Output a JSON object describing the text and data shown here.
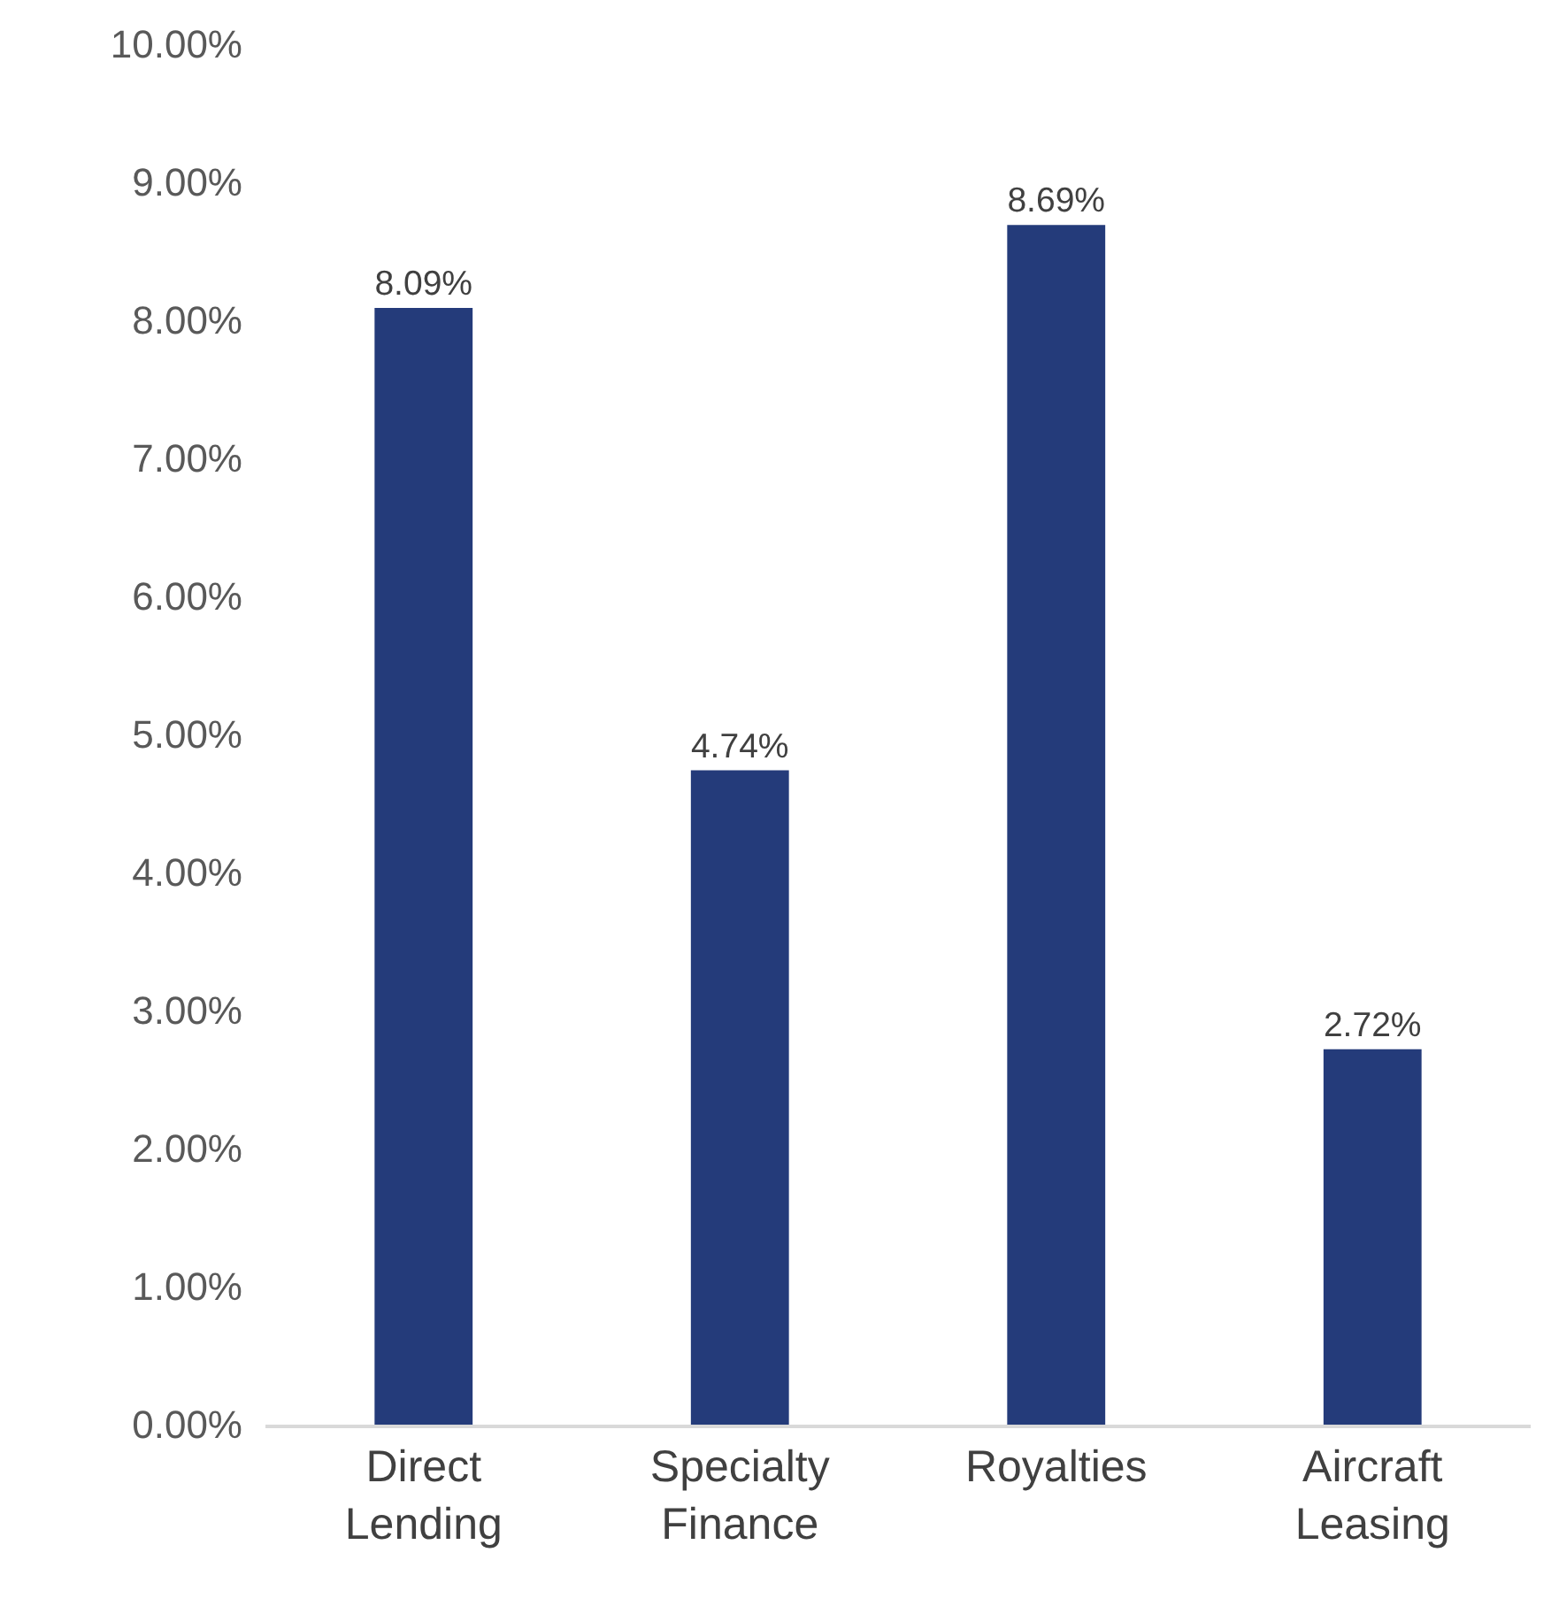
{
  "chart_data": {
    "type": "bar",
    "categories": [
      "Direct Lending",
      "Specialty Finance",
      "Royalties",
      "Aircraft Leasing"
    ],
    "values": [
      8.09,
      4.74,
      8.69,
      2.72
    ],
    "value_labels": [
      "8.09%",
      "4.74%",
      "8.69%",
      "2.72%"
    ],
    "color": "#243b7a",
    "ylim": [
      0,
      10
    ],
    "yticks": [
      {
        "value": 0,
        "label": "0.00%"
      },
      {
        "value": 1,
        "label": "1.00%"
      },
      {
        "value": 2,
        "label": "2.00%"
      },
      {
        "value": 3,
        "label": "3.00%"
      },
      {
        "value": 4,
        "label": "4.00%"
      },
      {
        "value": 5,
        "label": "5.00%"
      },
      {
        "value": 6,
        "label": "6.00%"
      },
      {
        "value": 7,
        "label": "7.00%"
      },
      {
        "value": 8,
        "label": "8.00%"
      },
      {
        "value": 9,
        "label": "9.00%"
      },
      {
        "value": 10,
        "label": "10.00%"
      }
    ],
    "tick_labels": "xy"
  }
}
